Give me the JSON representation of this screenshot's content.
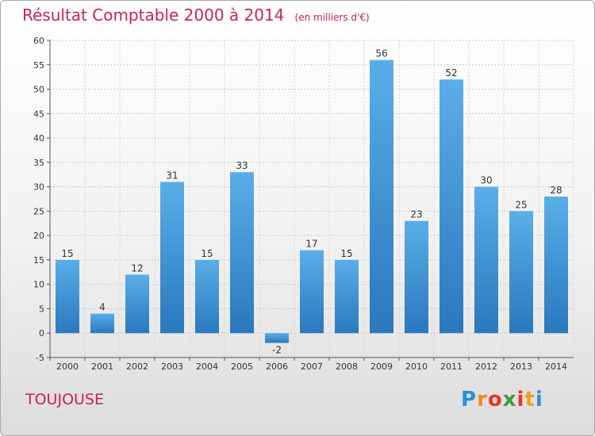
{
  "title": "Résultat Comptable 2000 à 2014",
  "unit_note": "(en milliers d'€)",
  "place": "TOUJOUSE",
  "logo": {
    "text": "Proxiti",
    "letter_colors": [
      "#2d8fd6",
      "#f08a1c",
      "#e8332a",
      "#3a9a3a",
      "#e8332a",
      "#f0a21c",
      "#2d8fd6"
    ]
  },
  "chart_data": {
    "type": "bar",
    "title": "Résultat Comptable 2000 à 2014",
    "subtitle": "(en milliers d'€)",
    "xlabel": "",
    "ylabel": "",
    "categories": [
      "2000",
      "2001",
      "2002",
      "2003",
      "2004",
      "2005",
      "2006",
      "2007",
      "2008",
      "2009",
      "2010",
      "2011",
      "2012",
      "2013",
      "2014"
    ],
    "values": [
      15,
      4,
      12,
      31,
      15,
      33,
      -2,
      17,
      15,
      56,
      23,
      52,
      30,
      25,
      28
    ],
    "data_labels": [
      "15",
      "4",
      "12",
      "31",
      "15",
      "33",
      "-2",
      "17",
      "15",
      "56",
      "23",
      "52",
      "30",
      "25",
      "28"
    ],
    "ylim": [
      -5,
      60
    ],
    "yticks": [
      -5,
      0,
      5,
      10,
      15,
      20,
      25,
      30,
      35,
      40,
      45,
      50,
      55,
      60
    ],
    "grid": true,
    "legend": "none",
    "bar_color": "#3d96d8"
  }
}
